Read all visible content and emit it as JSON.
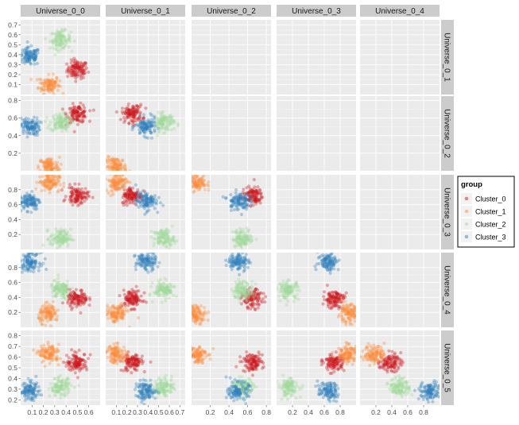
{
  "chart_data": {
    "type": "scatter",
    "title": "",
    "layout": "lower-triangle scatterplot matrix (facet grid)",
    "columns": [
      "Universe_0_0",
      "Universe_0_1",
      "Universe_0_2",
      "Universe_0_3",
      "Universe_0_4"
    ],
    "rows": [
      "Universe_0_1",
      "Universe_0_2",
      "Universe_0_3",
      "Universe_0_4",
      "Universe_0_5"
    ],
    "dims": {
      "Universe_0_0": {
        "range": [
          0.0,
          0.7
        ],
        "ticks": [
          "0.1",
          "0.2",
          "0.3",
          "0.4",
          "0.5",
          "0.6"
        ],
        "tick_values": [
          0.1,
          0.2,
          0.3,
          0.4,
          0.5,
          0.6
        ]
      },
      "Universe_0_1": {
        "range": [
          0.0,
          0.75
        ],
        "ticks": [
          "0.1",
          "0.2",
          "0.3",
          "0.4",
          "0.5",
          "0.6",
          "0.7"
        ],
        "tick_values": [
          0.1,
          0.2,
          0.3,
          0.4,
          0.5,
          0.6,
          0.7
        ],
        "y_ticks": [
          "0.1",
          "0.2",
          "0.3",
          "0.4",
          "0.5",
          "0.6",
          "0.7"
        ]
      },
      "Universe_0_2": {
        "range": [
          0.0,
          0.85
        ],
        "ticks": [
          "0.2",
          "0.4",
          "0.6",
          "0.8"
        ],
        "tick_values": [
          0.2,
          0.4,
          0.6,
          0.8
        ],
        "y_ticks": [
          "0.2",
          "0.4",
          "0.6",
          "0.8"
        ]
      },
      "Universe_0_3": {
        "range": [
          0.0,
          1.0
        ],
        "ticks": [
          "0.2",
          "0.4",
          "0.6",
          "0.8"
        ],
        "tick_values": [
          0.2,
          0.4,
          0.6,
          0.8
        ],
        "y_ticks": [
          "0.2",
          "0.4",
          "0.6",
          "0.8"
        ]
      },
      "Universe_0_4": {
        "range": [
          0.0,
          1.0
        ],
        "ticks": [
          "0.2",
          "0.4",
          "0.6",
          "0.8"
        ],
        "tick_values": [
          0.2,
          0.4,
          0.6,
          0.8
        ],
        "y_ticks": [
          "0.2",
          "0.4",
          "0.6",
          "0.8"
        ]
      },
      "Universe_0_5": {
        "range": [
          0.15,
          0.85
        ],
        "y_ticks": [
          "0.2",
          "0.3",
          "0.4",
          "0.5",
          "0.6",
          "0.7",
          "0.8"
        ],
        "tick_values": [
          0.2,
          0.3,
          0.4,
          0.5,
          0.6,
          0.7,
          0.8
        ]
      }
    },
    "series": [
      {
        "name": "Cluster_0",
        "color": "#cb181d",
        "center": {
          "Universe_0_0": 0.5,
          "Universe_0_1": 0.25,
          "Universe_0_2": 0.65,
          "Universe_0_3": 0.72,
          "Universe_0_4": 0.38,
          "Universe_0_5": 0.55
        }
      },
      {
        "name": "Cluster_1",
        "color": "#fd8d3c",
        "center": {
          "Universe_0_0": 0.25,
          "Universe_0_1": 0.1,
          "Universe_0_2": 0.05,
          "Universe_0_3": 0.9,
          "Universe_0_4": 0.18,
          "Universe_0_5": 0.63
        }
      },
      {
        "name": "Cluster_2",
        "color": "#a1d99b",
        "center": {
          "Universe_0_0": 0.35,
          "Universe_0_1": 0.55,
          "Universe_0_2": 0.55,
          "Universe_0_3": 0.15,
          "Universe_0_4": 0.5,
          "Universe_0_5": 0.32
        }
      },
      {
        "name": "Cluster_3",
        "color": "#3182bd",
        "center": {
          "Universe_0_0": 0.08,
          "Universe_0_1": 0.38,
          "Universe_0_2": 0.5,
          "Universe_0_3": 0.65,
          "Universe_0_4": 0.88,
          "Universe_0_5": 0.28
        }
      }
    ],
    "legend": {
      "title": "group",
      "placement": "right",
      "entries": [
        "Cluster_0",
        "Cluster_1",
        "Cluster_2",
        "Cluster_3"
      ]
    },
    "grid": true,
    "panel_background": "#ebebeb",
    "strip_background": "#cccccc"
  }
}
